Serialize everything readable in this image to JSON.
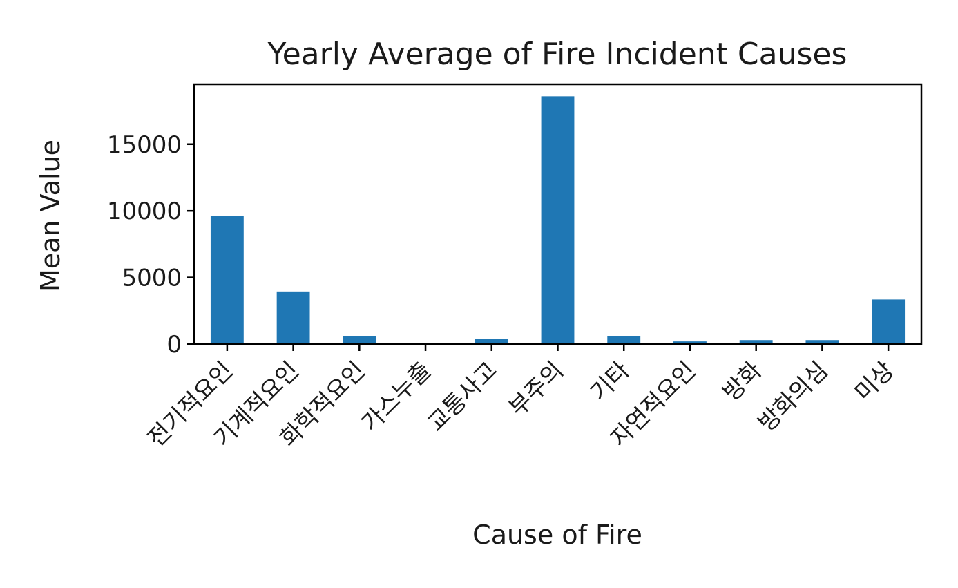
{
  "chart_data": {
    "type": "bar",
    "title": "Yearly Average of Fire Incident Causes",
    "xlabel": "Cause of Fire",
    "ylabel": "Mean Value",
    "categories": [
      "전기적요인",
      "기계적요인",
      "화학적요인",
      "가스누출",
      "교통사고",
      "부주의",
      "기타",
      "자연적요인",
      "방화",
      "방화의심",
      "미상"
    ],
    "values": [
      9600,
      3950,
      600,
      30,
      400,
      18600,
      600,
      200,
      300,
      300,
      3350
    ],
    "yticks": [
      0,
      5000,
      10000,
      15000
    ],
    "ytick_labels": [
      "0",
      "5000",
      "10000",
      "15000"
    ],
    "ylim": [
      0,
      19500
    ],
    "grid": false,
    "bar_color": "#1f77b4"
  }
}
